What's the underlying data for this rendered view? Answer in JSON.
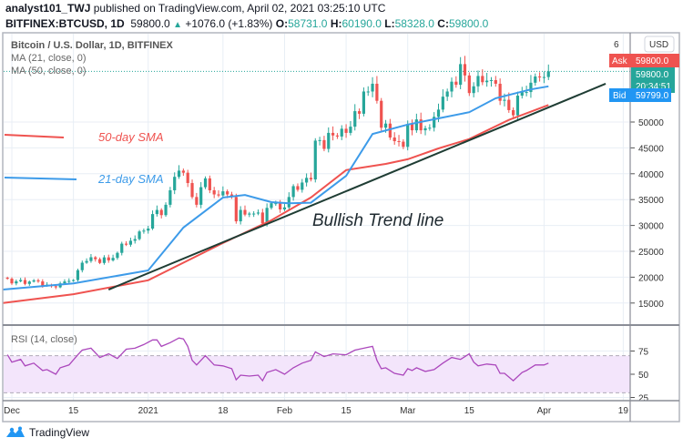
{
  "header": {
    "author": "analyst101_TWJ",
    "published": "published on TradingView.com, April 02, 2021 03:25:10 UTC",
    "symbol": "BITFINEX:BTCUSD, 1D",
    "last": "59800.0",
    "change": "+1076.0 (+1.83%)",
    "o_label": "O:",
    "o": "58731.0",
    "h_label": "H:",
    "h": "60190.0",
    "l_label": "L:",
    "l": "58328.0",
    "c_label": "C:",
    "c": "59800.0"
  },
  "legend": {
    "title": "Bitcoin / U.S. Dollar, 1D, BITFINEX",
    "ma21": "MA (21, close, 0)",
    "ma50": "MA (50, close, 0)",
    "rsi": "RSI (14, close)"
  },
  "price_scale": {
    "currency": "USD",
    "top_cut": "6",
    "ask_label": "Ask",
    "ask": "59800.0",
    "last": "59800.0",
    "countdown": "20:34:51",
    "bid_label": "Bid",
    "bid": "59799.0"
  },
  "colors": {
    "up": "#26a69a",
    "down": "#ef5350",
    "ma21": "#3d9be9",
    "ma50": "#ef5350",
    "trend": "#1f3d34",
    "rsi": "#ab47bc",
    "ask": "#ef5350",
    "bid": "#2196f3"
  },
  "footer": {
    "brand": "TradingView"
  },
  "chart_data": [
    {
      "type": "candlestick",
      "title": "Bitcoin / U.S. Dollar, 1D, BITFINEX",
      "y_ticks": [
        15000,
        20000,
        25000,
        30000,
        35000,
        40000,
        45000,
        50000
      ],
      "x_ticks": [
        {
          "date": "2020-12-01",
          "label": "Dec"
        },
        {
          "date": "2020-12-15",
          "label": "15"
        },
        {
          "date": "2021-01-01",
          "label": "2021"
        },
        {
          "date": "2021-01-18",
          "label": "18"
        },
        {
          "date": "2021-02-01",
          "label": "Feb"
        },
        {
          "date": "2021-02-15",
          "label": "15"
        },
        {
          "date": "2021-03-01",
          "label": "Mar"
        },
        {
          "date": "2021-03-15",
          "label": "15"
        },
        {
          "date": "2021-04-01",
          "label": "Apr"
        },
        {
          "date": "2021-04-19",
          "label": "19"
        }
      ],
      "grid": true,
      "start_date": "2020-11-30",
      "closes": [
        19700,
        18800,
        19200,
        19450,
        18700,
        19150,
        19380,
        19180,
        18330,
        18550,
        18250,
        18040,
        18800,
        19170,
        19280,
        19440,
        21350,
        22800,
        23130,
        23850,
        23480,
        22750,
        23830,
        23250,
        23730,
        24700,
        26480,
        26280,
        27040,
        27370,
        28840,
        29000,
        29400,
        32200,
        33000,
        32000,
        34000,
        36800,
        39400,
        40600,
        40200,
        38200,
        35500,
        34000,
        37400,
        39100,
        36800,
        36000,
        35800,
        36600,
        36000,
        35500,
        30800,
        33000,
        32100,
        32300,
        32300,
        32500,
        30400,
        33400,
        34300,
        34300,
        33100,
        33500,
        35500,
        37600,
        36900,
        38300,
        39200,
        38900,
        46400,
        46500,
        44800,
        47900,
        47400,
        47200,
        48700,
        47900,
        49100,
        52100,
        51600,
        55900,
        55900,
        57400,
        54100,
        48900,
        49700,
        47000,
        46300,
        46200,
        45200,
        49600,
        48400,
        50500,
        48400,
        48800,
        48900,
        51000,
        52400,
        54900,
        55900,
        57800,
        57200,
        61200,
        59000,
        55600,
        56900,
        58900,
        57700,
        58000,
        58100,
        57400,
        54100,
        54300,
        52300,
        51300,
        55100,
        55800,
        55800,
        57600,
        58800,
        58700,
        58700,
        59800
      ],
      "series": [
        {
          "name": "MA (21, close, 0)",
          "points": [
            [
              "2020-11-29",
              17600
            ],
            [
              "2020-12-15",
              18800
            ],
            [
              "2021-01-01",
              21300
            ],
            [
              "2021-01-09",
              29600
            ],
            [
              "2021-01-18",
              35400
            ],
            [
              "2021-01-23",
              35900
            ],
            [
              "2021-01-29",
              34500
            ],
            [
              "2021-02-02",
              34300
            ],
            [
              "2021-02-07",
              34400
            ],
            [
              "2021-02-15",
              39600
            ],
            [
              "2021-02-21",
              47700
            ],
            [
              "2021-03-01",
              49500
            ],
            [
              "2021-03-08",
              50700
            ],
            [
              "2021-03-15",
              51900
            ],
            [
              "2021-03-21",
              54600
            ],
            [
              "2021-03-29",
              56300
            ],
            [
              "2021-04-02",
              56900
            ]
          ]
        },
        {
          "name": "MA (50, close, 0)",
          "points": [
            [
              "2020-11-29",
              15000
            ],
            [
              "2020-12-15",
              16700
            ],
            [
              "2021-01-01",
              19400
            ],
            [
              "2021-01-18",
              26600
            ],
            [
              "2021-01-29",
              31000
            ],
            [
              "2021-02-07",
              35400
            ],
            [
              "2021-02-15",
              40700
            ],
            [
              "2021-02-24",
              41900
            ],
            [
              "2021-03-01",
              42800
            ],
            [
              "2021-03-08",
              44900
            ],
            [
              "2021-03-15",
              46700
            ],
            [
              "2021-03-24",
              50400
            ],
            [
              "2021-04-02",
              53300
            ]
          ]
        }
      ],
      "annotations": [
        {
          "text": "50-day SMA",
          "color": "#ef5350"
        },
        {
          "text": "21-day SMA",
          "color": "#3d9be9"
        },
        {
          "text": "Bullish Trend line",
          "color": "#1f3d34",
          "from": [
            "2020-12-23",
            17600
          ],
          "to": [
            "2021-04-15",
            57400
          ]
        }
      ]
    },
    {
      "type": "line",
      "title": "RSI (14, close)",
      "y_ticks": [
        25,
        50,
        75
      ],
      "band": [
        30,
        70
      ],
      "series": [
        {
          "name": "RSI (14, close)",
          "points": [
            [
              "2020-11-30",
              71
            ],
            [
              "2020-12-01",
              63
            ],
            [
              "2020-12-03",
              66
            ],
            [
              "2020-12-04",
              59
            ],
            [
              "2020-12-06",
              62
            ],
            [
              "2020-12-08",
              54
            ],
            [
              "2020-12-09",
              55
            ],
            [
              "2020-12-11",
              50
            ],
            [
              "2020-12-12",
              57
            ],
            [
              "2020-12-14",
              60
            ],
            [
              "2020-12-16",
              71
            ],
            [
              "2020-12-17",
              76
            ],
            [
              "2020-12-19",
              78
            ],
            [
              "2020-12-21",
              68
            ],
            [
              "2020-12-23",
              72
            ],
            [
              "2020-12-25",
              67
            ],
            [
              "2020-12-27",
              77
            ],
            [
              "2020-12-29",
              78
            ],
            [
              "2020-12-31",
              82
            ],
            [
              "2021-01-02",
              87
            ],
            [
              "2021-01-03",
              87
            ],
            [
              "2021-01-04",
              80
            ],
            [
              "2021-01-06",
              84
            ],
            [
              "2021-01-08",
              89
            ],
            [
              "2021-01-09",
              88
            ],
            [
              "2021-01-10",
              80
            ],
            [
              "2021-01-11",
              65
            ],
            [
              "2021-01-12",
              60
            ],
            [
              "2021-01-14",
              70
            ],
            [
              "2021-01-16",
              60
            ],
            [
              "2021-01-18",
              59
            ],
            [
              "2021-01-20",
              56
            ],
            [
              "2021-01-21",
              44
            ],
            [
              "2021-01-22",
              49
            ],
            [
              "2021-01-24",
              48
            ],
            [
              "2021-01-26",
              49
            ],
            [
              "2021-01-27",
              43
            ],
            [
              "2021-01-28",
              52
            ],
            [
              "2021-01-30",
              55
            ],
            [
              "2021-02-01",
              50
            ],
            [
              "2021-02-03",
              57
            ],
            [
              "2021-02-05",
              62
            ],
            [
              "2021-02-07",
              65
            ],
            [
              "2021-02-08",
              74
            ],
            [
              "2021-02-10",
              69
            ],
            [
              "2021-02-12",
              72
            ],
            [
              "2021-02-15",
              71
            ],
            [
              "2021-02-17",
              76
            ],
            [
              "2021-02-20",
              79
            ],
            [
              "2021-02-21",
              80
            ],
            [
              "2021-02-22",
              65
            ],
            [
              "2021-02-23",
              56
            ],
            [
              "2021-02-24",
              57
            ],
            [
              "2021-02-26",
              51
            ],
            [
              "2021-02-28",
              49
            ],
            [
              "2021-03-01",
              56
            ],
            [
              "2021-03-02",
              54
            ],
            [
              "2021-03-03",
              57
            ],
            [
              "2021-03-05",
              53
            ],
            [
              "2021-03-07",
              55
            ],
            [
              "2021-03-09",
              62
            ],
            [
              "2021-03-11",
              68
            ],
            [
              "2021-03-13",
              66
            ],
            [
              "2021-03-15",
              72
            ],
            [
              "2021-03-16",
              63
            ],
            [
              "2021-03-17",
              59
            ],
            [
              "2021-03-19",
              61
            ],
            [
              "2021-03-21",
              60
            ],
            [
              "2021-03-22",
              51
            ],
            [
              "2021-03-23",
              51
            ],
            [
              "2021-03-25",
              43
            ],
            [
              "2021-03-27",
              52
            ],
            [
              "2021-03-28",
              54
            ],
            [
              "2021-03-30",
              60
            ],
            [
              "2021-04-01",
              60
            ],
            [
              "2021-04-02",
              62
            ]
          ]
        }
      ]
    }
  ]
}
